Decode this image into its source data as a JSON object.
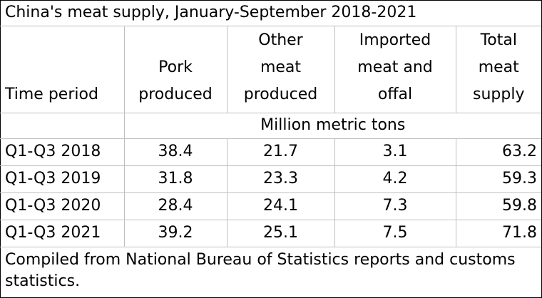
{
  "title": "China's meat supply, January-September 2018-2021",
  "header": {
    "time_period": "Time period",
    "pork": [
      "Pork",
      "produced"
    ],
    "other_meat": [
      "Other",
      "meat",
      "produced"
    ],
    "imported": [
      "Imported",
      "meat and",
      "offal"
    ],
    "total": [
      "Total",
      "meat",
      "supply"
    ]
  },
  "units": "Million metric tons",
  "rows": [
    {
      "period": "Q1-Q3 2018",
      "pork": "38.4",
      "other": "21.7",
      "imported": "3.1",
      "total": "63.2"
    },
    {
      "period": "Q1-Q3 2019",
      "pork": "31.8",
      "other": "23.3",
      "imported": "4.2",
      "total": "59.3"
    },
    {
      "period": "Q1-Q3 2020",
      "pork": "28.4",
      "other": "24.1",
      "imported": "7.3",
      "total": "59.8"
    },
    {
      "period": "Q1-Q3 2021",
      "pork": "39.2",
      "other": "25.1",
      "imported": "7.5",
      "total": "71.8"
    }
  ],
  "note": "Compiled from National Bureau of Statistics reports and customs statistics."
}
